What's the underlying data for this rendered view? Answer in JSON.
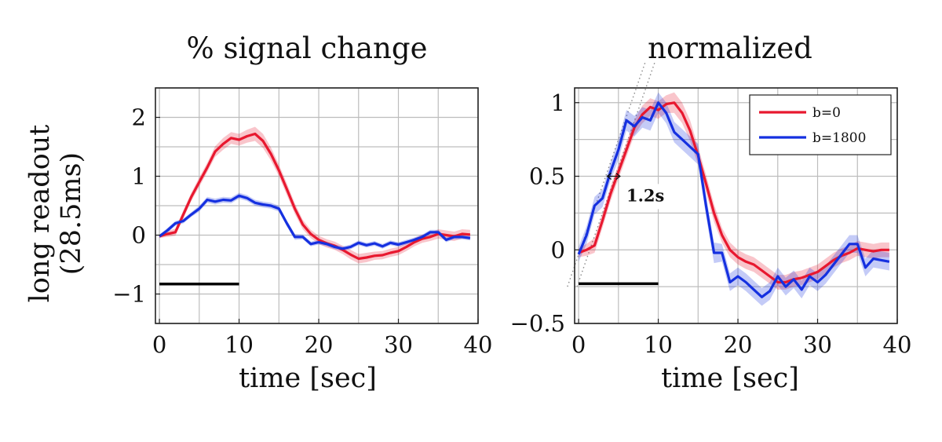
{
  "figure": {
    "ylabel_line1": "long readout",
    "ylabel_line2": "(28.5ms)"
  },
  "chart_data": [
    {
      "type": "line",
      "title": "% signal change",
      "xlabel": "time [sec]",
      "ylabel": "",
      "xlim": [
        -0.5,
        40
      ],
      "ylim": [
        -1.5,
        2.5
      ],
      "xticks": [
        0,
        10,
        20,
        30,
        40
      ],
      "yticks": [
        -1,
        0,
        1,
        2
      ],
      "xtick_labels": [
        "0",
        "10",
        "20",
        "30",
        "40"
      ],
      "ytick_labels": [
        "−1",
        "0",
        "1",
        "2"
      ],
      "grid_x": [
        0,
        5,
        10,
        15,
        20,
        25,
        30,
        35,
        40
      ],
      "grid_y": [
        -1.5,
        -1,
        -0.5,
        0,
        0.5,
        1,
        1.5,
        2,
        2.5
      ],
      "stimulus_bar": {
        "x0": 0,
        "x1": 10,
        "y": -0.83
      },
      "series": [
        {
          "name": "b=0",
          "color": "#e8182f",
          "x": [
            0,
            1,
            2,
            3,
            4,
            5,
            6,
            7,
            8,
            9,
            10,
            11,
            12,
            13,
            14,
            15,
            16,
            17,
            18,
            19,
            20,
            21,
            22,
            23,
            24,
            25,
            26,
            27,
            28,
            29,
            30,
            31,
            32,
            33,
            34,
            35,
            36,
            37,
            38,
            39
          ],
          "y": [
            -0.02,
            0.02,
            0.05,
            0.35,
            0.65,
            0.9,
            1.15,
            1.42,
            1.55,
            1.65,
            1.62,
            1.68,
            1.72,
            1.6,
            1.38,
            1.1,
            0.78,
            0.45,
            0.18,
            0.02,
            -0.08,
            -0.14,
            -0.18,
            -0.25,
            -0.33,
            -0.4,
            -0.38,
            -0.35,
            -0.34,
            -0.3,
            -0.27,
            -0.2,
            -0.12,
            -0.06,
            -0.03,
            0.02,
            0.0,
            -0.02,
            0.02,
            0.01
          ],
          "band": [
            0.03,
            0.05,
            0.06,
            0.07,
            0.07,
            0.08,
            0.08,
            0.09,
            0.1,
            0.1,
            0.1,
            0.11,
            0.12,
            0.12,
            0.11,
            0.1,
            0.1,
            0.09,
            0.08,
            0.07,
            0.07,
            0.07,
            0.07,
            0.07,
            0.08,
            0.08,
            0.08,
            0.07,
            0.07,
            0.07,
            0.07,
            0.07,
            0.07,
            0.07,
            0.07,
            0.08,
            0.08,
            0.08,
            0.08,
            0.08
          ]
        },
        {
          "name": "b=1800",
          "color": "#1530e0",
          "x": [
            0,
            1,
            2,
            3,
            4,
            5,
            6,
            7,
            8,
            9,
            10,
            11,
            12,
            13,
            14,
            15,
            16,
            17,
            18,
            19,
            20,
            21,
            22,
            23,
            24,
            25,
            26,
            27,
            28,
            29,
            30,
            31,
            32,
            33,
            34,
            35,
            36,
            37,
            38,
            39
          ],
          "y": [
            -0.02,
            0.08,
            0.2,
            0.24,
            0.35,
            0.45,
            0.6,
            0.57,
            0.6,
            0.59,
            0.67,
            0.63,
            0.55,
            0.52,
            0.5,
            0.45,
            0.2,
            -0.03,
            -0.03,
            -0.15,
            -0.12,
            -0.15,
            -0.2,
            -0.23,
            -0.2,
            -0.13,
            -0.17,
            -0.14,
            -0.19,
            -0.13,
            -0.16,
            -0.12,
            -0.08,
            -0.03,
            0.05,
            0.05,
            -0.08,
            -0.03,
            -0.03,
            -0.05
          ],
          "band": [
            0.03,
            0.04,
            0.04,
            0.04,
            0.04,
            0.05,
            0.05,
            0.05,
            0.05,
            0.05,
            0.05,
            0.05,
            0.05,
            0.05,
            0.05,
            0.05,
            0.05,
            0.05,
            0.04,
            0.04,
            0.04,
            0.04,
            0.04,
            0.04,
            0.04,
            0.04,
            0.04,
            0.04,
            0.04,
            0.04,
            0.04,
            0.04,
            0.04,
            0.04,
            0.04,
            0.04,
            0.04,
            0.04,
            0.04,
            0.04
          ]
        }
      ]
    },
    {
      "type": "line",
      "title": "normalized",
      "xlabel": "time [sec]",
      "ylabel": "",
      "xlim": [
        -0.5,
        40
      ],
      "ylim": [
        -0.5,
        1.1
      ],
      "xticks": [
        0,
        10,
        20,
        30,
        40
      ],
      "yticks": [
        -0.5,
        0,
        0.5,
        1
      ],
      "xtick_labels": [
        "0",
        "10",
        "20",
        "30",
        "40"
      ],
      "ytick_labels": [
        "−0.5",
        "0",
        "0.5",
        "1"
      ],
      "grid_x": [
        0,
        5,
        10,
        15,
        20,
        25,
        30,
        35,
        40
      ],
      "grid_y": [
        -0.5,
        -0.25,
        0,
        0.25,
        0.5,
        0.75,
        1
      ],
      "stimulus_bar": {
        "x0": 0,
        "x1": 10,
        "y": -0.23
      },
      "legend": {
        "entries": [
          "b=0",
          "b=1800"
        ],
        "location": "top-right"
      },
      "annotation": {
        "text": "1.2s",
        "text_x": 6,
        "text_y": 0.33,
        "arrow_x0": 3.6,
        "arrow_x1": 5.2,
        "arrow_y": 0.5
      },
      "guide_lines": [
        {
          "x0": -1.4,
          "y0": -0.25,
          "x1": 8.4,
          "y1": 1.28
        },
        {
          "x0": -0.2,
          "y0": -0.25,
          "x1": 9.6,
          "y1": 1.28
        }
      ],
      "series": [
        {
          "name": "b=0",
          "color": "#e8182f",
          "x": [
            0,
            1,
            2,
            3,
            4,
            5,
            6,
            7,
            8,
            9,
            10,
            11,
            12,
            13,
            14,
            15,
            16,
            17,
            18,
            19,
            20,
            21,
            22,
            23,
            24,
            25,
            26,
            27,
            28,
            29,
            30,
            31,
            32,
            33,
            34,
            35,
            36,
            37,
            38,
            39
          ],
          "y": [
            -0.02,
            0.0,
            0.03,
            0.2,
            0.38,
            0.53,
            0.68,
            0.83,
            0.92,
            0.97,
            0.95,
            0.99,
            1.0,
            0.93,
            0.81,
            0.64,
            0.45,
            0.25,
            0.1,
            0.0,
            -0.05,
            -0.08,
            -0.1,
            -0.14,
            -0.18,
            -0.22,
            -0.22,
            -0.2,
            -0.19,
            -0.17,
            -0.15,
            -0.11,
            -0.07,
            -0.04,
            -0.02,
            0.01,
            0.0,
            -0.01,
            0.0,
            0.0
          ],
          "band": [
            0.03,
            0.04,
            0.05,
            0.05,
            0.05,
            0.05,
            0.05,
            0.05,
            0.06,
            0.06,
            0.06,
            0.06,
            0.07,
            0.07,
            0.07,
            0.06,
            0.06,
            0.06,
            0.05,
            0.05,
            0.05,
            0.05,
            0.05,
            0.05,
            0.05,
            0.05,
            0.05,
            0.05,
            0.05,
            0.05,
            0.05,
            0.05,
            0.05,
            0.05,
            0.05,
            0.05,
            0.05,
            0.05,
            0.05,
            0.05
          ]
        },
        {
          "name": "b=1800",
          "color": "#1530e0",
          "x": [
            0,
            1,
            2,
            3,
            4,
            5,
            6,
            7,
            8,
            9,
            10,
            11,
            12,
            13,
            14,
            15,
            16,
            17,
            18,
            19,
            20,
            21,
            22,
            23,
            24,
            25,
            26,
            27,
            28,
            29,
            30,
            31,
            32,
            33,
            34,
            35,
            36,
            37,
            38,
            39
          ],
          "y": [
            -0.03,
            0.1,
            0.3,
            0.35,
            0.53,
            0.68,
            0.88,
            0.84,
            0.9,
            0.88,
            1.0,
            0.93,
            0.8,
            0.75,
            0.7,
            0.65,
            0.3,
            -0.02,
            -0.02,
            -0.22,
            -0.18,
            -0.22,
            -0.27,
            -0.32,
            -0.28,
            -0.18,
            -0.25,
            -0.2,
            -0.27,
            -0.18,
            -0.22,
            -0.17,
            -0.1,
            -0.03,
            0.04,
            0.04,
            -0.12,
            -0.06,
            -0.07,
            -0.08
          ],
          "band": [
            0.05,
            0.06,
            0.06,
            0.06,
            0.06,
            0.07,
            0.07,
            0.07,
            0.07,
            0.07,
            0.07,
            0.07,
            0.07,
            0.07,
            0.07,
            0.07,
            0.07,
            0.07,
            0.06,
            0.06,
            0.06,
            0.06,
            0.06,
            0.06,
            0.06,
            0.06,
            0.06,
            0.06,
            0.06,
            0.06,
            0.06,
            0.06,
            0.06,
            0.06,
            0.06,
            0.06,
            0.06,
            0.06,
            0.06,
            0.06
          ]
        }
      ]
    }
  ]
}
